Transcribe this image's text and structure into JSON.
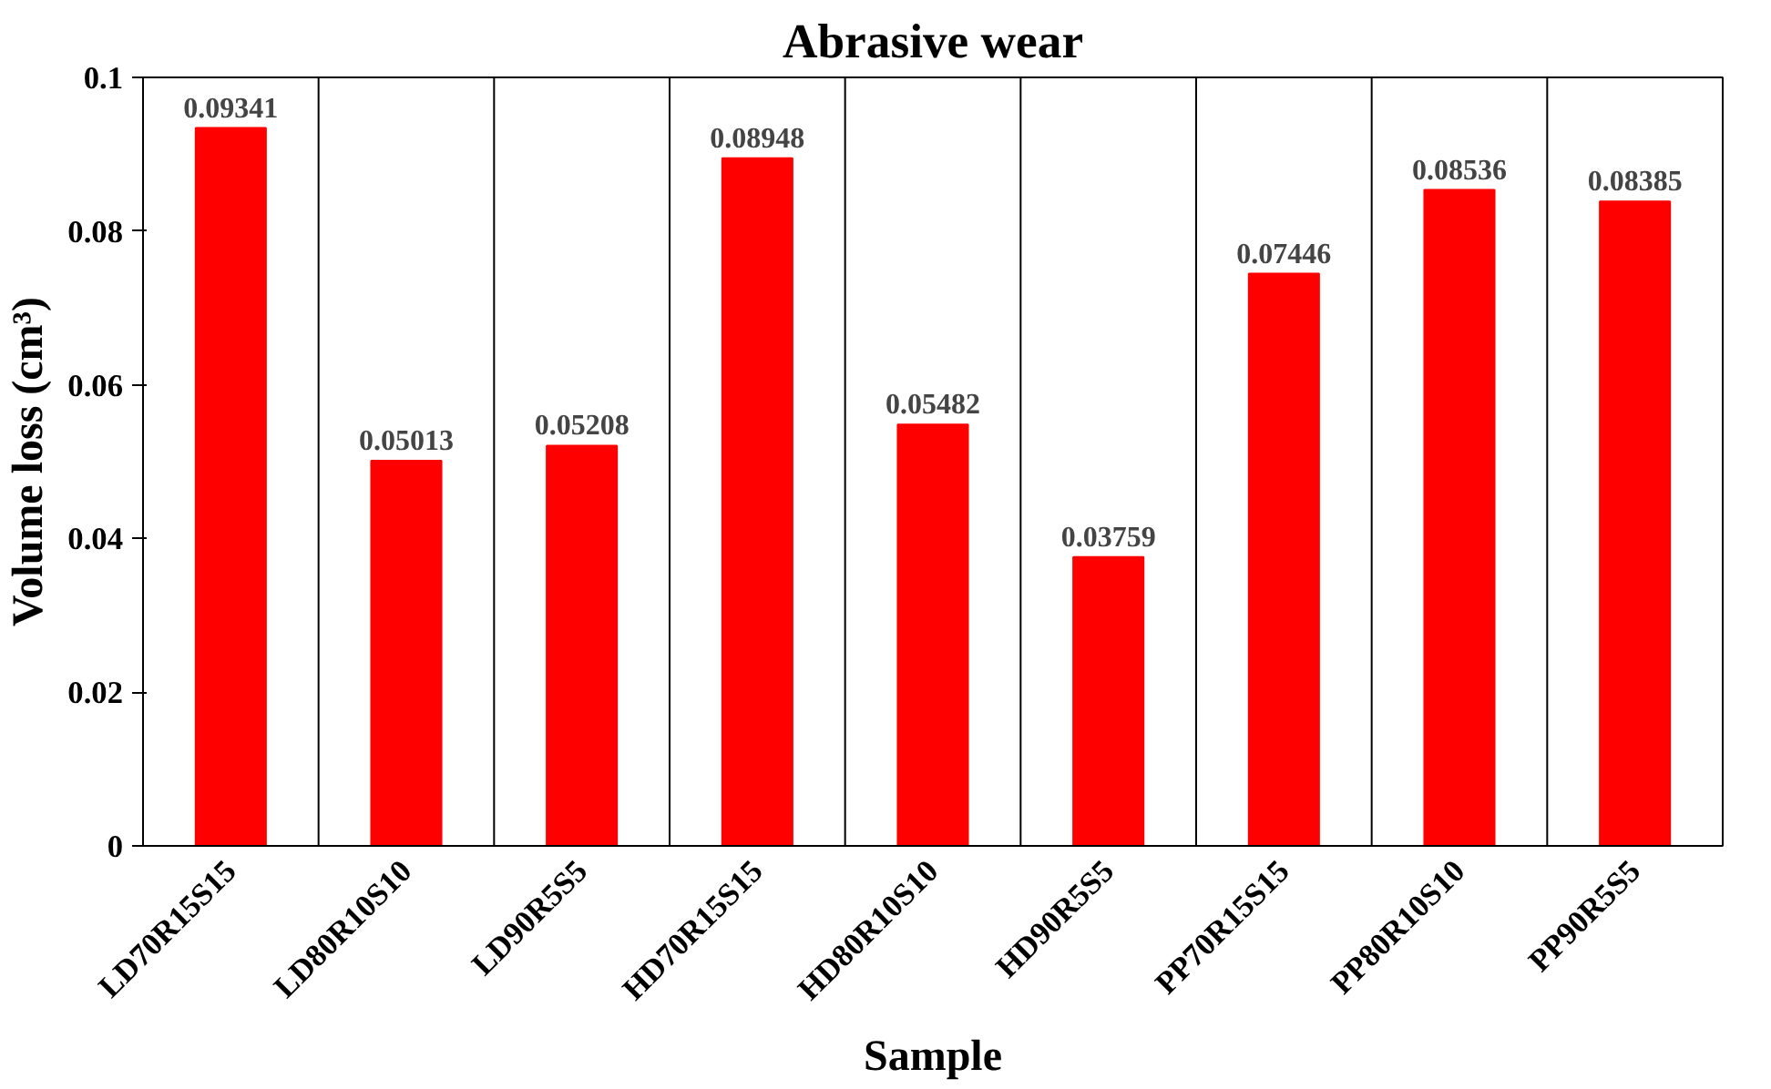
{
  "chart_data": {
    "type": "bar",
    "title": "Abrasive wear",
    "xlabel": "Sample",
    "ylabel": "Volume loss (cm³)",
    "categories": [
      "LD70R15S15",
      "LD80R10S10",
      "LD90R5S5",
      "HD70R15S15",
      "HD80R10S10",
      "HD90R5S5",
      "PP70R15S15",
      "PP80R10S10",
      "PP90R5S5"
    ],
    "values": [
      0.09341,
      0.05013,
      0.05208,
      0.08948,
      0.05482,
      0.03759,
      0.07446,
      0.08536,
      0.08385
    ],
    "color": "#ff0000",
    "ylim": [
      0,
      0.1
    ],
    "yticks": [
      0,
      0.02,
      0.04,
      0.06,
      0.08,
      0.1
    ],
    "grid": "x",
    "data_labels": true
  }
}
